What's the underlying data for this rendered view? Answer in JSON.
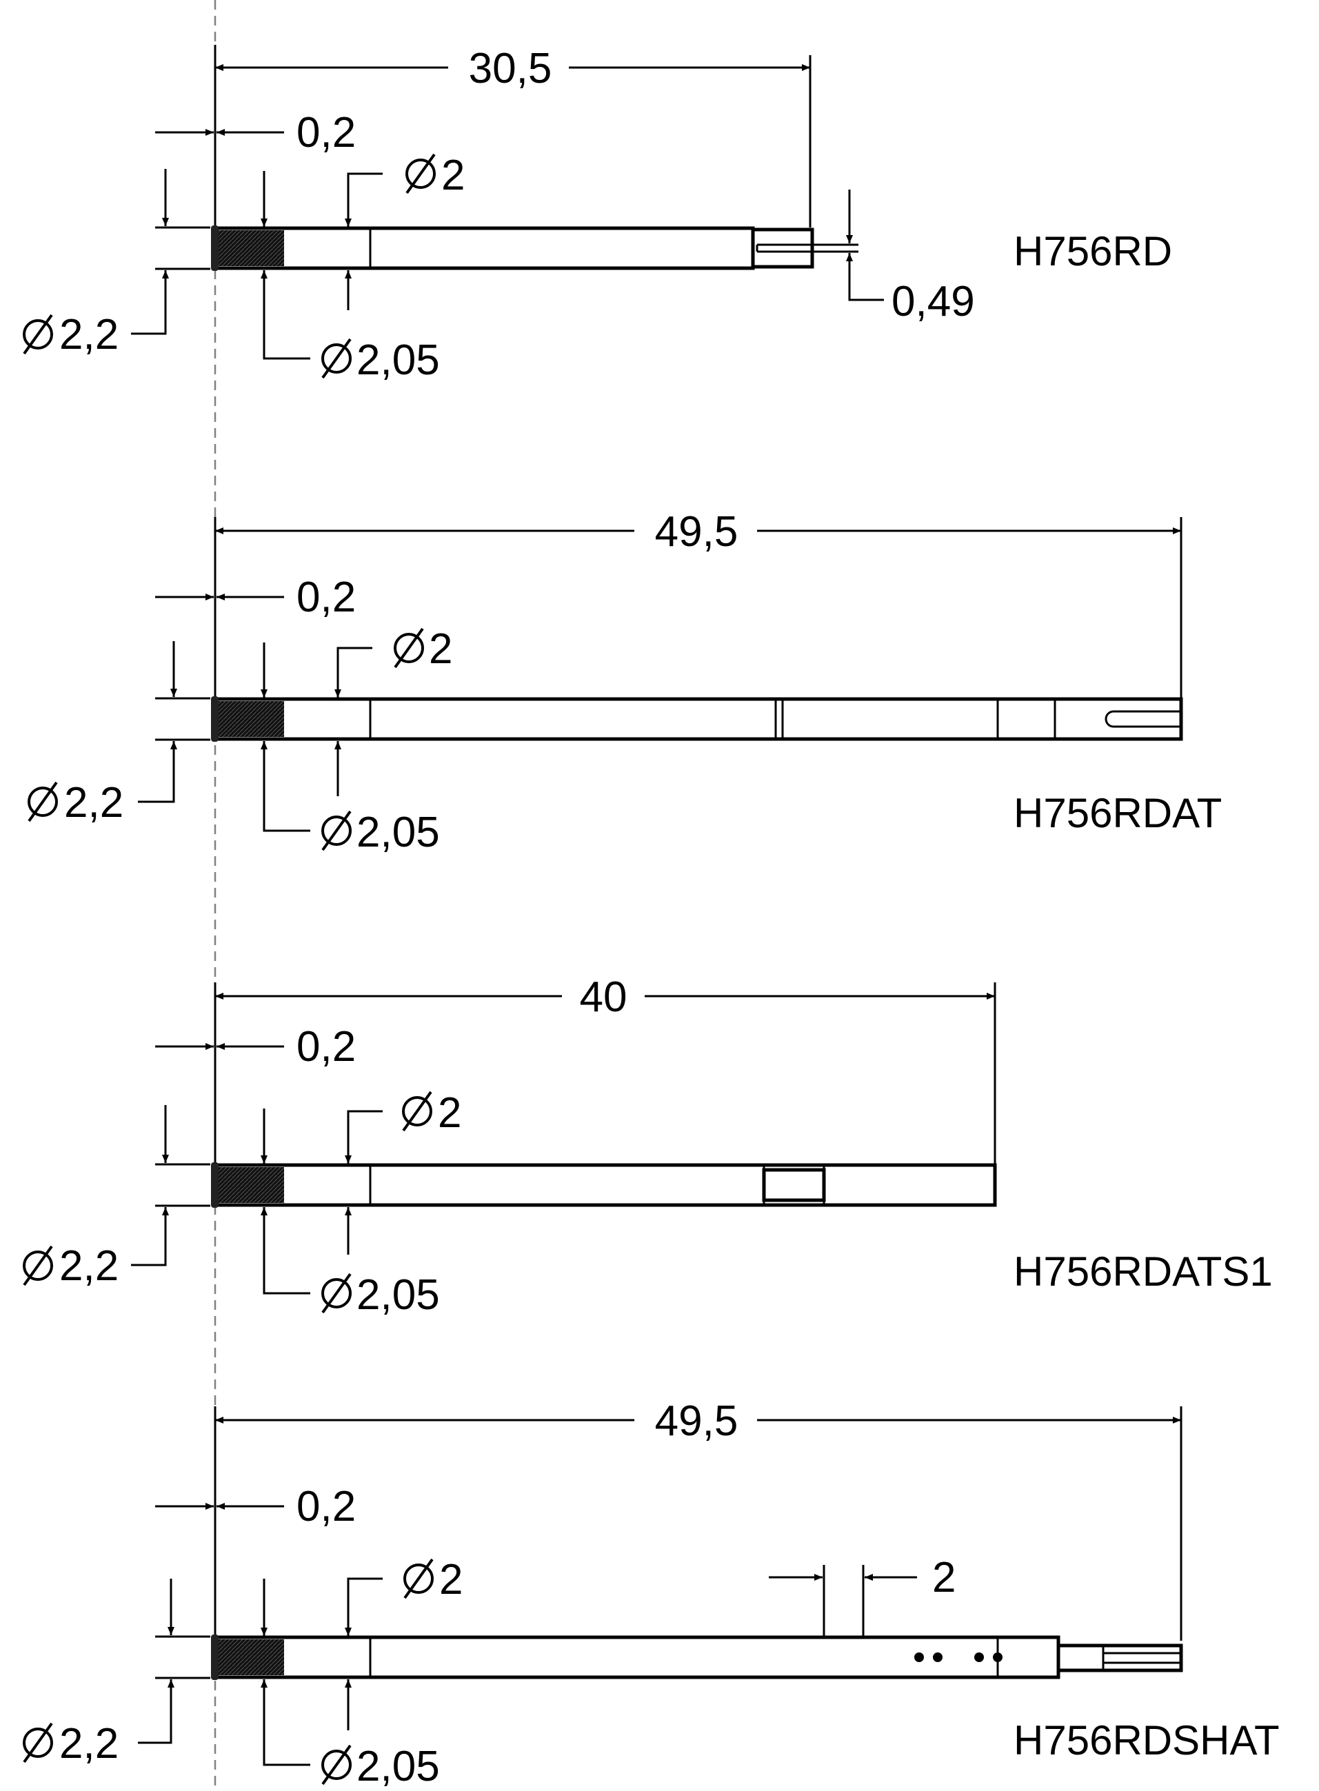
{
  "views": [
    {
      "part_number": "H756RD",
      "overall_length": "30,5",
      "head_offset": "0,2",
      "diameter_shank": "2",
      "diameter_head": "2,2",
      "diameter_knurl": "2,05",
      "slot_width": "0,49"
    },
    {
      "part_number": "H756RDAT",
      "overall_length": "49,5",
      "head_offset": "0,2",
      "diameter_shank": "2",
      "diameter_head": "2,2",
      "diameter_knurl": "2,05"
    },
    {
      "part_number": "H756RDATS1",
      "overall_length": "40",
      "head_offset": "0,2",
      "diameter_shank": "2",
      "diameter_head": "2,2",
      "diameter_knurl": "2,05"
    },
    {
      "part_number": "H756RDSHAT",
      "overall_length": "49,5",
      "head_offset": "0,2",
      "diameter_shank": "2",
      "diameter_head": "2,2",
      "diameter_knurl": "2,05",
      "feature_width": "2"
    }
  ]
}
